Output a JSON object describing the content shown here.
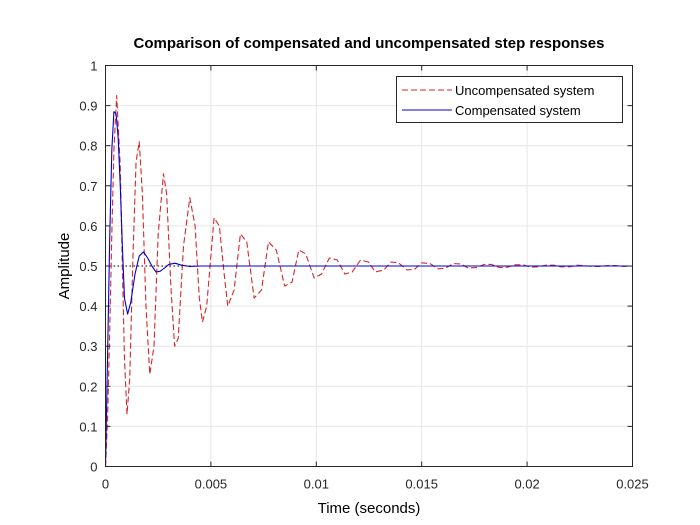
{
  "chart_data": {
    "type": "line",
    "title": "Comparison of compensated and uncompensated step responses",
    "xlabel": "Time (seconds)",
    "ylabel": "Amplitude",
    "xlim": [
      0,
      0.025
    ],
    "ylim": [
      0,
      1
    ],
    "x_ticks": [
      "0",
      "0.005",
      "0.01",
      "0.015",
      "0.02",
      "0.025"
    ],
    "y_ticks": [
      "0",
      "0.1",
      "0.2",
      "0.3",
      "0.4",
      "0.5",
      "0.6",
      "0.7",
      "0.8",
      "0.9",
      "1"
    ],
    "grid": true,
    "legend_position": "top-right",
    "reference_line": {
      "y": 0.5,
      "style": "dotted",
      "color": "#000000"
    },
    "series": [
      {
        "name": "Uncompensated system",
        "color": "#d62728",
        "style": "dashed",
        "x": [
          0,
          0.0001,
          0.0002,
          0.0003,
          0.0004,
          0.00053,
          0.0007,
          0.0008,
          0.0009,
          0.00102,
          0.00115,
          0.0013,
          0.00145,
          0.0016,
          0.00175,
          0.00192,
          0.0021,
          0.0023,
          0.0025,
          0.00275,
          0.0029,
          0.0031,
          0.00328,
          0.00345,
          0.0037,
          0.004,
          0.00425,
          0.00445,
          0.0046,
          0.0048,
          0.00515,
          0.0054,
          0.00563,
          0.0058,
          0.0061,
          0.0064,
          0.0067,
          0.00705,
          0.0074,
          0.00773,
          0.0081,
          0.0085,
          0.00885,
          0.00917,
          0.0095,
          0.0099,
          0.01025,
          0.01062,
          0.011,
          0.01135,
          0.0117,
          0.0121,
          0.01247,
          0.0128,
          0.0132,
          0.01355,
          0.0139,
          0.0143,
          0.01467,
          0.015,
          0.0154,
          0.01577,
          0.0161,
          0.0165,
          0.01687,
          0.0172,
          0.0176,
          0.01797,
          0.0183,
          0.0187,
          0.01907,
          0.0194,
          0.0198,
          0.02017,
          0.0205,
          0.0209,
          0.02127,
          0.0216,
          0.022,
          0.02237,
          0.0227,
          0.0231,
          0.02347,
          0.0238,
          0.0242,
          0.02457,
          0.025
        ],
        "y": [
          0,
          0.12,
          0.34,
          0.58,
          0.79,
          0.925,
          0.75,
          0.5,
          0.27,
          0.13,
          0.22,
          0.52,
          0.76,
          0.81,
          0.68,
          0.4,
          0.23,
          0.3,
          0.58,
          0.73,
          0.68,
          0.45,
          0.3,
          0.32,
          0.55,
          0.67,
          0.6,
          0.42,
          0.36,
          0.4,
          0.62,
          0.6,
          0.48,
          0.4,
          0.44,
          0.58,
          0.56,
          0.42,
          0.44,
          0.56,
          0.54,
          0.45,
          0.46,
          0.54,
          0.53,
          0.47,
          0.48,
          0.52,
          0.515,
          0.48,
          0.485,
          0.515,
          0.51,
          0.485,
          0.49,
          0.51,
          0.508,
          0.49,
          0.492,
          0.508,
          0.506,
          0.493,
          0.494,
          0.506,
          0.505,
          0.495,
          0.496,
          0.504,
          0.504,
          0.496,
          0.497,
          0.503,
          0.503,
          0.497,
          0.498,
          0.502,
          0.502,
          0.498,
          0.498,
          0.502,
          0.501,
          0.499,
          0.499,
          0.501,
          0.501,
          0.499,
          0.5
        ]
      },
      {
        "name": "Compensated system",
        "color": "#0000cc",
        "style": "solid",
        "x": [
          0,
          0.0001,
          0.0002,
          0.0003,
          0.0004,
          0.0005,
          0.0006,
          0.0007,
          0.0008,
          0.0009,
          0.00105,
          0.0012,
          0.0014,
          0.0016,
          0.0018,
          0.002,
          0.0022,
          0.0024,
          0.0026,
          0.0028,
          0.003,
          0.0033,
          0.0036,
          0.004,
          0.0045,
          0.005,
          0.006,
          0.008,
          0.01,
          0.015,
          0.02,
          0.025
        ],
        "y": [
          0,
          0.28,
          0.57,
          0.79,
          0.885,
          0.88,
          0.82,
          0.7,
          0.55,
          0.42,
          0.38,
          0.41,
          0.48,
          0.525,
          0.535,
          0.52,
          0.5,
          0.485,
          0.487,
          0.495,
          0.504,
          0.507,
          0.502,
          0.499,
          0.5,
          0.5,
          0.5,
          0.5,
          0.5,
          0.5,
          0.5,
          0.5
        ]
      }
    ]
  }
}
